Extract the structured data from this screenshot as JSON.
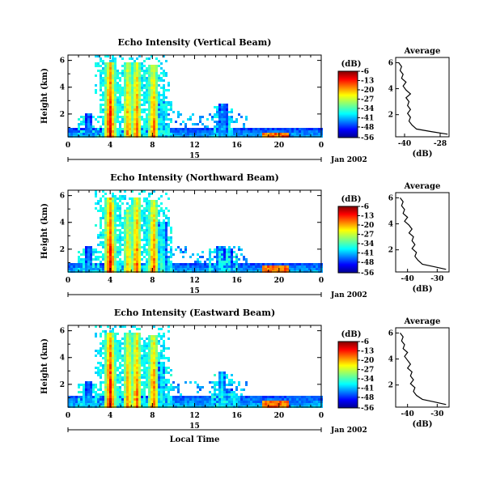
{
  "chart_data": [
    {
      "type": "heatmap",
      "title": "Echo Intensity (Vertical Beam)",
      "ylabel": "Height (km)",
      "xlabel": "",
      "x_ticks": [
        "0",
        "4",
        "8",
        "12",
        "16",
        "20",
        "0"
      ],
      "y_ticks": [
        "6",
        "4",
        "2"
      ],
      "xlim": [
        0,
        24
      ],
      "ylim": [
        0.3,
        6.4
      ],
      "date_axis": {
        "day_label": "15",
        "month_label": "Jan 2002"
      },
      "colorbar": {
        "unit_label": "(dB)",
        "tick_labels": [
          "-6",
          "-13",
          "-20",
          "-27",
          "-34",
          "-41",
          "-48",
          "-56"
        ],
        "range": [
          -56,
          -6
        ]
      },
      "features": {
        "columns": [
          {
            "t": 2.0,
            "top": 2.0,
            "intensity": 0.3
          },
          {
            "t": 4.0,
            "top": 5.9,
            "intensity": 0.95
          },
          {
            "t": 5.7,
            "top": 5.9,
            "intensity": 0.8
          },
          {
            "t": 6.5,
            "top": 5.9,
            "intensity": 0.85
          },
          {
            "t": 8.1,
            "top": 5.7,
            "intensity": 0.85
          },
          {
            "t": 8.9,
            "top": 3.2,
            "intensity": 0.4
          },
          {
            "t": 14.7,
            "top": 2.8,
            "intensity": 0.35
          }
        ],
        "surface_layer_top": 0.9,
        "hotspot": {
          "t_start": 18.5,
          "t_end": 21.0,
          "top": 0.6
        }
      },
      "average_profile": {
        "title": "Average",
        "xlabel": "(dB)",
        "x_ticks": [
          "-40",
          "-28"
        ],
        "y_ticks": [
          "6",
          "4",
          "2"
        ],
        "xlim": [
          -43,
          -25
        ],
        "ylim": [
          0.3,
          6.4
        ],
        "points": [
          [
            -25.5,
            0.5
          ],
          [
            -31,
            0.7
          ],
          [
            -36,
            0.9
          ],
          [
            -37.5,
            1.2
          ],
          [
            -38.5,
            1.5
          ],
          [
            -38,
            1.8
          ],
          [
            -39,
            2.1
          ],
          [
            -38,
            2.4
          ],
          [
            -39,
            2.7
          ],
          [
            -38.5,
            3.0
          ],
          [
            -39.5,
            3.3
          ],
          [
            -38,
            3.6
          ],
          [
            -39.5,
            3.9
          ],
          [
            -40.5,
            4.2
          ],
          [
            -39.5,
            4.5
          ],
          [
            -41,
            4.8
          ],
          [
            -40.5,
            5.1
          ],
          [
            -41.5,
            5.4
          ],
          [
            -41,
            5.7
          ],
          [
            -42,
            6.0
          ]
        ]
      }
    },
    {
      "type": "heatmap",
      "title": "Echo Intensity (Northward Beam)",
      "ylabel": "Height (km)",
      "xlabel": "",
      "x_ticks": [
        "0",
        "4",
        "8",
        "12",
        "16",
        "20",
        "0"
      ],
      "y_ticks": [
        "6",
        "4",
        "2"
      ],
      "xlim": [
        0,
        24
      ],
      "ylim": [
        0.3,
        6.4
      ],
      "date_axis": {
        "day_label": "15",
        "month_label": "Jan 2002"
      },
      "colorbar": {
        "unit_label": "(dB)",
        "tick_labels": [
          "-6",
          "-13",
          "-20",
          "-27",
          "-34",
          "-41",
          "-48",
          "-56"
        ],
        "range": [
          -56,
          -6
        ]
      },
      "features": {
        "columns": [
          {
            "t": 2.0,
            "top": 2.2,
            "intensity": 0.3
          },
          {
            "t": 4.0,
            "top": 5.9,
            "intensity": 0.95
          },
          {
            "t": 5.7,
            "top": 5.0,
            "intensity": 0.75
          },
          {
            "t": 6.5,
            "top": 5.9,
            "intensity": 0.85
          },
          {
            "t": 8.1,
            "top": 5.7,
            "intensity": 0.85
          },
          {
            "t": 8.9,
            "top": 4.0,
            "intensity": 0.45
          },
          {
            "t": 14.4,
            "top": 2.3,
            "intensity": 0.35
          },
          {
            "t": 15.2,
            "top": 2.0,
            "intensity": 0.3
          }
        ],
        "surface_layer_top": 1.0,
        "hotspot": {
          "t_start": 18.5,
          "t_end": 21.0,
          "top": 0.7
        }
      },
      "average_profile": {
        "title": "Average",
        "xlabel": "(dB)",
        "x_ticks": [
          "-40",
          "-30"
        ],
        "y_ticks": [
          "6",
          "4",
          "2"
        ],
        "xlim": [
          -44,
          -26
        ],
        "ylim": [
          0.3,
          6.4
        ],
        "points": [
          [
            -27,
            0.5
          ],
          [
            -31,
            0.7
          ],
          [
            -35,
            0.9
          ],
          [
            -36.5,
            1.2
          ],
          [
            -37.5,
            1.5
          ],
          [
            -37,
            1.8
          ],
          [
            -38.5,
            2.1
          ],
          [
            -37.5,
            2.4
          ],
          [
            -38.5,
            2.7
          ],
          [
            -38,
            3.0
          ],
          [
            -39.5,
            3.3
          ],
          [
            -38.5,
            3.6
          ],
          [
            -39.5,
            3.9
          ],
          [
            -41,
            4.2
          ],
          [
            -40,
            4.5
          ],
          [
            -41.5,
            4.8
          ],
          [
            -41,
            5.1
          ],
          [
            -42,
            5.4
          ],
          [
            -41.5,
            5.7
          ],
          [
            -42.5,
            6.0
          ]
        ]
      }
    },
    {
      "type": "heatmap",
      "title": "Echo Intensity (Eastward Beam)",
      "ylabel": "Height (km)",
      "xlabel": "Local Time",
      "x_ticks": [
        "0",
        "4",
        "8",
        "12",
        "16",
        "20",
        "0"
      ],
      "y_ticks": [
        "6",
        "4",
        "2"
      ],
      "xlim": [
        0,
        24
      ],
      "ylim": [
        0.3,
        6.4
      ],
      "date_axis": {
        "day_label": "15",
        "month_label": "Jan 2002"
      },
      "colorbar": {
        "unit_label": "(dB)",
        "tick_labels": [
          "-6",
          "-13",
          "-20",
          "-27",
          "-34",
          "-41",
          "-48",
          "-56"
        ],
        "range": [
          -56,
          -6
        ]
      },
      "features": {
        "columns": [
          {
            "t": 2.0,
            "top": 2.3,
            "intensity": 0.3
          },
          {
            "t": 4.0,
            "top": 5.9,
            "intensity": 0.95
          },
          {
            "t": 5.7,
            "top": 5.9,
            "intensity": 0.8
          },
          {
            "t": 6.5,
            "top": 5.9,
            "intensity": 0.85
          },
          {
            "t": 8.1,
            "top": 5.7,
            "intensity": 0.85
          },
          {
            "t": 8.9,
            "top": 3.6,
            "intensity": 0.4
          },
          {
            "t": 14.6,
            "top": 3.0,
            "intensity": 0.4
          },
          {
            "t": 15.3,
            "top": 1.6,
            "intensity": 0.3
          }
        ],
        "surface_layer_top": 1.2,
        "hotspot": {
          "t_start": 18.5,
          "t_end": 21.0,
          "top": 0.7
        }
      },
      "average_profile": {
        "title": "Average",
        "xlabel": "(dB)",
        "x_ticks": [
          "-40",
          "-30"
        ],
        "y_ticks": [
          "6",
          "4",
          "2"
        ],
        "xlim": [
          -44,
          -26
        ],
        "ylim": [
          0.3,
          6.4
        ],
        "points": [
          [
            -27,
            0.5
          ],
          [
            -31,
            0.7
          ],
          [
            -35,
            0.9
          ],
          [
            -37,
            1.2
          ],
          [
            -38,
            1.5
          ],
          [
            -37.5,
            1.8
          ],
          [
            -39,
            2.1
          ],
          [
            -38,
            2.4
          ],
          [
            -39,
            2.7
          ],
          [
            -38.5,
            3.0
          ],
          [
            -40,
            3.3
          ],
          [
            -39,
            3.6
          ],
          [
            -40,
            3.9
          ],
          [
            -41,
            4.2
          ],
          [
            -40,
            4.5
          ],
          [
            -41.5,
            4.8
          ],
          [
            -41,
            5.1
          ],
          [
            -42,
            5.4
          ],
          [
            -41.5,
            5.7
          ],
          [
            -42.5,
            6.0
          ]
        ]
      }
    }
  ]
}
